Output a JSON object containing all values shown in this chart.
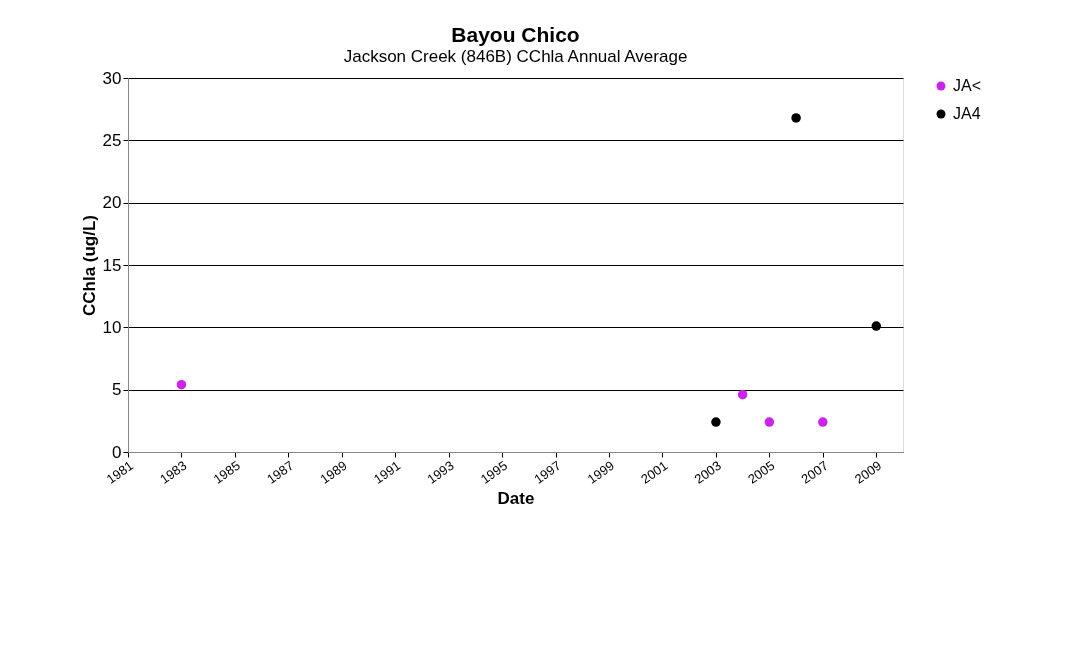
{
  "chart_data": {
    "type": "scatter",
    "title": "Bayou Chico",
    "subtitle": "Jackson Creek (846B) CChla Annual Average",
    "xlabel": "Date",
    "ylabel": "CChla (ug/L)",
    "series": [
      {
        "name": "JA<",
        "color": "#cc22ee",
        "x": [
          1983,
          2004,
          2005,
          2007
        ],
        "values": [
          5.4,
          4.6,
          2.4,
          2.4
        ]
      },
      {
        "name": "JA4",
        "color": "#000000",
        "x": [
          2003,
          2006,
          2009
        ],
        "values": [
          2.4,
          26.8,
          10.1
        ]
      }
    ],
    "xlim": [
      1981,
      2010
    ],
    "xticks": [
      1981,
      1983,
      1985,
      1987,
      1989,
      1991,
      1993,
      1995,
      1997,
      1999,
      2001,
      2003,
      2005,
      2007,
      2009
    ],
    "ylim": [
      0,
      30
    ],
    "yticks": [
      0,
      5,
      10,
      15,
      20,
      25,
      30
    ],
    "grid": "y",
    "legend": "right",
    "marker": "circle"
  }
}
